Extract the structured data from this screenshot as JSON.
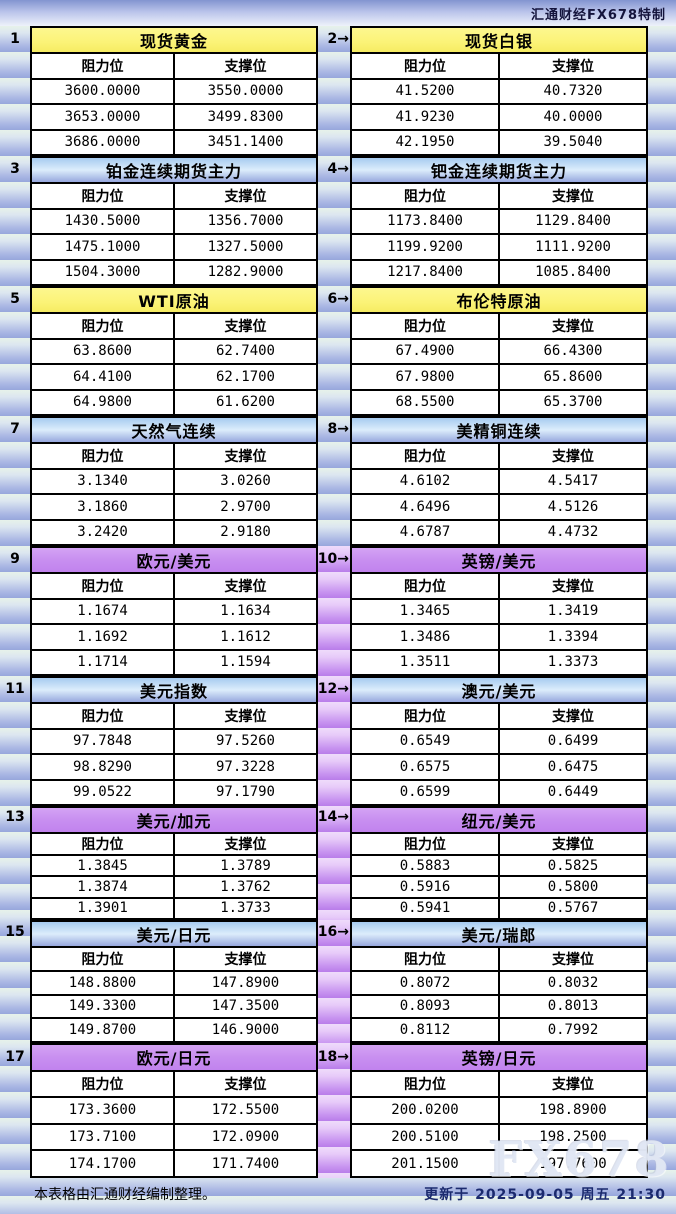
{
  "page": {
    "top_credit": "汇通财经FX678特制",
    "resistance_label": "阻力位",
    "support_label": "支撑位",
    "footer_left": "本表格由汇通财经编制整理。",
    "footer_right": "更新于 2025-09-05 周五 21:30",
    "watermark": "FX678",
    "colors": {
      "yellow_header": "#fbf377",
      "blue_header": "#a6cbf0",
      "purple_header": "#c88ff0",
      "stripe_blue": "#97a7dc",
      "stripe_purple": "#b97dea"
    }
  },
  "chart_data": {
    "type": "table",
    "columns": [
      "阻力位",
      "支撑位"
    ],
    "sections": [
      {
        "gap": "blue",
        "left": {
          "num": "1",
          "title": "现货黄金",
          "theme": "yellow",
          "rows": [
            [
              "3600.0000",
              "3550.0000"
            ],
            [
              "3653.0000",
              "3499.8300"
            ],
            [
              "3686.0000",
              "3451.1400"
            ]
          ]
        },
        "right": {
          "num": "2→",
          "title": "现货白银",
          "theme": "yellow",
          "rows": [
            [
              "41.5200",
              "40.7320"
            ],
            [
              "41.9230",
              "40.0000"
            ],
            [
              "42.1950",
              "39.5040"
            ]
          ]
        }
      },
      {
        "gap": "blue",
        "left": {
          "num": "3",
          "title": "铂金连续期货主力",
          "theme": "blue",
          "rows": [
            [
              "1430.5000",
              "1356.7000"
            ],
            [
              "1475.1000",
              "1327.5000"
            ],
            [
              "1504.3000",
              "1282.9000"
            ]
          ]
        },
        "right": {
          "num": "4→",
          "title": "钯金连续期货主力",
          "theme": "blue",
          "rows": [
            [
              "1173.8400",
              "1129.8400"
            ],
            [
              "1199.9200",
              "1111.9200"
            ],
            [
              "1217.8400",
              "1085.8400"
            ]
          ]
        }
      },
      {
        "gap": "blue",
        "left": {
          "num": "5",
          "title": "WTI原油",
          "theme": "yellow",
          "rows": [
            [
              "63.8600",
              "62.7400"
            ],
            [
              "64.4100",
              "62.1700"
            ],
            [
              "64.9800",
              "61.6200"
            ]
          ]
        },
        "right": {
          "num": "6→",
          "title": "布伦特原油",
          "theme": "yellow",
          "rows": [
            [
              "67.4900",
              "66.4300"
            ],
            [
              "67.9800",
              "65.8600"
            ],
            [
              "68.5500",
              "65.3700"
            ]
          ]
        }
      },
      {
        "gap": "blue",
        "left": {
          "num": "7",
          "title": "天然气连续",
          "theme": "blue",
          "rows": [
            [
              "3.1340",
              "3.0260"
            ],
            [
              "3.1860",
              "2.9700"
            ],
            [
              "3.2420",
              "2.9180"
            ]
          ]
        },
        "right": {
          "num": "8→",
          "title": "美精铜连续",
          "theme": "blue",
          "rows": [
            [
              "4.6102",
              "4.5417"
            ],
            [
              "4.6496",
              "4.5126"
            ],
            [
              "4.6787",
              "4.4732"
            ]
          ]
        }
      },
      {
        "gap": "purple",
        "left": {
          "num": "9",
          "title": "欧元/美元",
          "theme": "purple",
          "rows": [
            [
              "1.1674",
              "1.1634"
            ],
            [
              "1.1692",
              "1.1612"
            ],
            [
              "1.1714",
              "1.1594"
            ]
          ]
        },
        "right": {
          "num": "10→",
          "title": "英镑/美元",
          "theme": "purple",
          "rows": [
            [
              "1.3465",
              "1.3419"
            ],
            [
              "1.3486",
              "1.3394"
            ],
            [
              "1.3511",
              "1.3373"
            ]
          ]
        }
      },
      {
        "gap": "purple",
        "left": {
          "num": "11",
          "title": "美元指数",
          "theme": "blue",
          "rows": [
            [
              "97.7848",
              "97.5260"
            ],
            [
              "98.8290",
              "97.3228"
            ],
            [
              "99.0522",
              "97.1790"
            ]
          ]
        },
        "right": {
          "num": "12→",
          "title": "澳元/美元",
          "theme": "blue",
          "rows": [
            [
              "0.6549",
              "0.6499"
            ],
            [
              "0.6575",
              "0.6475"
            ],
            [
              "0.6599",
              "0.6449"
            ]
          ]
        }
      },
      {
        "gap": "purple",
        "left": {
          "num": "13",
          "title": "美元/加元",
          "theme": "purple",
          "rows": [
            [
              "1.3845",
              "1.3789"
            ],
            [
              "1.3874",
              "1.3762"
            ],
            [
              "1.3901",
              "1.3733"
            ]
          ]
        },
        "right": {
          "num": "14→",
          "title": "纽元/美元",
          "theme": "purple",
          "rows": [
            [
              "0.5883",
              "0.5825"
            ],
            [
              "0.5916",
              "0.5800"
            ],
            [
              "0.5941",
              "0.5767"
            ]
          ]
        }
      },
      {
        "gap": "purple",
        "left": {
          "num": "15",
          "title": "美元/日元",
          "theme": "blue",
          "rows": [
            [
              "148.8800",
              "147.8900"
            ],
            [
              "149.3300",
              "147.3500"
            ],
            [
              "149.8700",
              "146.9000"
            ]
          ]
        },
        "right": {
          "num": "16→",
          "title": "美元/瑞郎",
          "theme": "blue",
          "rows": [
            [
              "0.8072",
              "0.8032"
            ],
            [
              "0.8093",
              "0.8013"
            ],
            [
              "0.8112",
              "0.7992"
            ]
          ]
        }
      },
      {
        "gap": "purple",
        "left": {
          "num": "17",
          "title": "欧元/日元",
          "theme": "purple",
          "rows": [
            [
              "173.3600",
              "172.5500"
            ],
            [
              "173.7100",
              "172.0900"
            ],
            [
              "174.1700",
              "171.7400"
            ]
          ]
        },
        "right": {
          "num": "18→",
          "title": "英镑/日元",
          "theme": "purple",
          "rows": [
            [
              "200.0200",
              "198.8900"
            ],
            [
              "200.5100",
              "198.2500"
            ],
            [
              "201.1500",
              "197.7600"
            ]
          ]
        }
      }
    ]
  }
}
